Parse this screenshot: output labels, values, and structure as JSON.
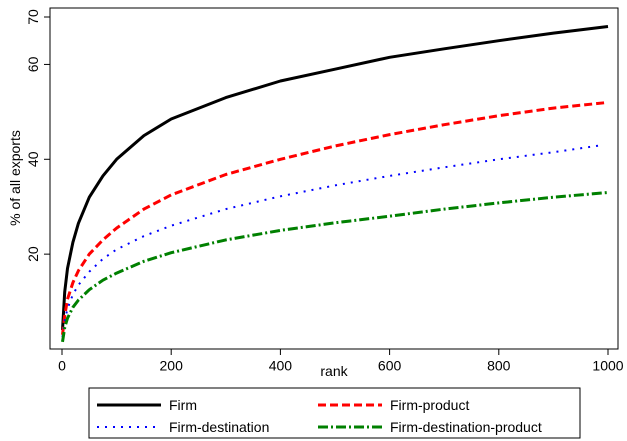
{
  "chart_data": {
    "type": "line",
    "title": "",
    "xlabel": "rank",
    "ylabel": "% of all exports",
    "xlim": [
      0,
      1000
    ],
    "ylim": [
      0,
      70
    ],
    "xticks": [
      0,
      200,
      400,
      600,
      800,
      1000
    ],
    "yticks": [
      20,
      40,
      60,
      70
    ],
    "grid": false,
    "legend_position": "bottom",
    "series": [
      {
        "name": "Firm",
        "color": "#000000",
        "style": "solid",
        "x": [
          1,
          5,
          10,
          20,
          30,
          50,
          75,
          100,
          150,
          200,
          300,
          400,
          500,
          600,
          700,
          800,
          900,
          1000
        ],
        "y": [
          4,
          12,
          17,
          22.5,
          26.5,
          32,
          36.5,
          40,
          45,
          48.5,
          53,
          56.5,
          59,
          61.5,
          63.3,
          65,
          66.6,
          68
        ]
      },
      {
        "name": "Firm-product",
        "color": "#ff0000",
        "style": "dashed",
        "x": [
          1,
          5,
          10,
          20,
          30,
          50,
          75,
          100,
          150,
          200,
          300,
          400,
          500,
          600,
          700,
          800,
          900,
          1000
        ],
        "y": [
          3,
          7,
          10.5,
          14,
          16.5,
          20,
          23,
          25.5,
          29.5,
          32.5,
          36.8,
          40,
          42.8,
          45.2,
          47.3,
          49.2,
          50.8,
          52
        ]
      },
      {
        "name": "Firm-destination",
        "color": "#0000ff",
        "style": "dotted",
        "x": [
          1,
          5,
          10,
          20,
          30,
          50,
          75,
          100,
          150,
          200,
          300,
          400,
          500,
          600,
          700,
          800,
          900,
          990
        ],
        "y": [
          2.5,
          6,
          8.5,
          11.5,
          13.5,
          16.3,
          19,
          21,
          23.8,
          26,
          29.5,
          32.2,
          34.5,
          36.5,
          38.3,
          40,
          41.5,
          43
        ]
      },
      {
        "name": "Firm-destination-product",
        "color": "#008000",
        "style": "dashdot",
        "x": [
          1,
          5,
          10,
          20,
          30,
          50,
          75,
          100,
          150,
          200,
          300,
          400,
          500,
          600,
          700,
          800,
          900,
          1000
        ],
        "y": [
          1.5,
          4.5,
          6.5,
          8.8,
          10.3,
          12.5,
          14.5,
          16,
          18.5,
          20.3,
          23,
          25,
          26.6,
          28,
          29.5,
          30.8,
          32,
          33
        ]
      }
    ]
  }
}
